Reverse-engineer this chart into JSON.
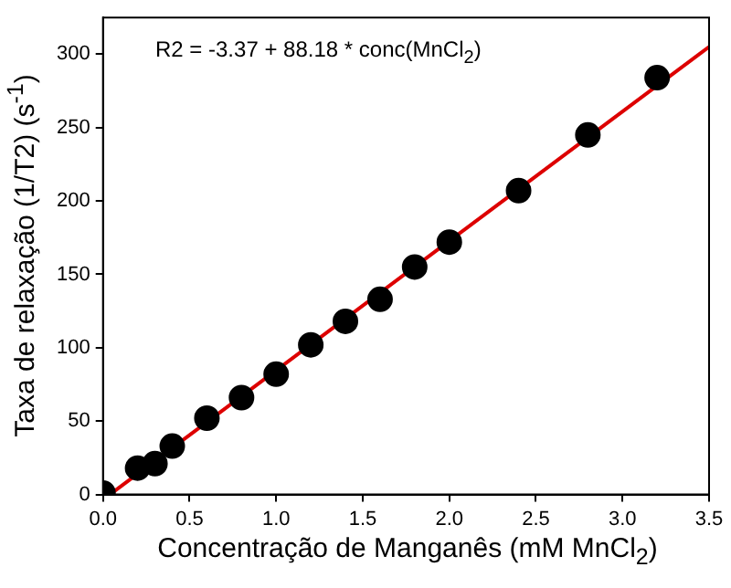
{
  "chart_data": {
    "type": "scatter",
    "xlabel": "Concentração de Manganês (mM MnCl$_{2}$)",
    "ylabel": "Taxa de relaxação (1/T2) (s$^{-1}$)",
    "annotations": [
      "R2 = -3.37 + 88.18 * conc(MnCl$_{2}$)"
    ],
    "series": [
      {
        "marker": "circle",
        "color": "#000000",
        "x": [
          0,
          0.2,
          0.3,
          0.4,
          0.6,
          0.8,
          1.0,
          1.2,
          1.4,
          1.6,
          1.8,
          2.0,
          2.4,
          2.8,
          3.2
        ],
        "values": [
          1,
          18,
          21,
          33,
          52,
          66,
          82,
          102,
          118,
          133,
          155,
          172,
          207,
          245,
          284
        ]
      },
      {
        "type": "line",
        "marker": "none",
        "color": "#dd0000",
        "x": [
          0.04,
          3.5
        ],
        "values": [
          0,
          305
        ]
      }
    ],
    "xlim": [
      0,
      3.5
    ],
    "xticks": [
      {
        "value": 0,
        "label": "0.0"
      },
      0.5,
      {
        "value": 1,
        "label": "1.0"
      },
      1.5,
      {
        "value": 2,
        "label": "2.0"
      },
      2.5,
      {
        "value": 3,
        "label": "3.0"
      },
      3.5
    ],
    "ylim": [
      0,
      325
    ],
    "yticks": [
      0,
      50,
      100,
      150,
      200,
      250,
      300
    ],
    "grid": false,
    "legend": false,
    "line_style": "solid"
  }
}
